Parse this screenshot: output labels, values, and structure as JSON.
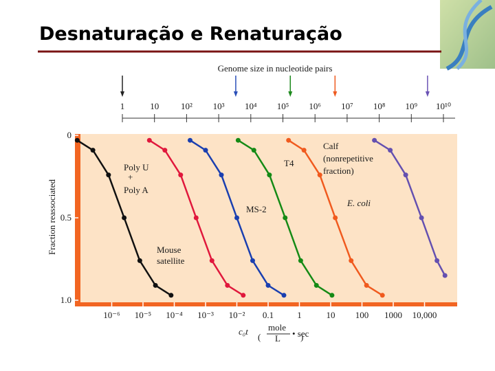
{
  "chart_data": {
    "type": "line",
    "title": "Desnaturação e Renaturação",
    "x2label": "Genome size in nucleotide pairs",
    "ylabel": "Fraction reassociated",
    "xlabel_parts": [
      "c₀t",
      "mole",
      "L",
      "• sec"
    ],
    "xscale": "log",
    "xlim": [
      1e-07,
      100000
    ],
    "xticks": [
      {
        "value": 1e-06,
        "label": "10⁻⁶"
      },
      {
        "value": 1e-05,
        "label": "10⁻⁵"
      },
      {
        "value": 0.0001,
        "label": "10⁻⁴"
      },
      {
        "value": 0.001,
        "label": "10⁻³"
      },
      {
        "value": 0.01,
        "label": "10⁻²"
      },
      0.1,
      1,
      10,
      100,
      1000,
      {
        "value": 10000,
        "label": "10,000"
      }
    ],
    "ylim": [
      0,
      1
    ],
    "y_inverted": true,
    "yticks": [
      0,
      0.5,
      {
        "value": 1,
        "label": "1.0"
      }
    ],
    "x2lim": [
      1,
      10000000000
    ],
    "x2ticks": [
      1,
      10,
      {
        "value": 100,
        "label": "10²"
      },
      {
        "value": 1000,
        "label": "10³"
      },
      {
        "value": 10000,
        "label": "10⁴"
      },
      {
        "value": 100000,
        "label": "10⁵"
      },
      {
        "value": 1000000,
        "label": "10⁶"
      },
      {
        "value": 10000000,
        "label": "10⁷"
      },
      {
        "value": 100000000,
        "label": "10⁸"
      },
      {
        "value": 1000000000,
        "label": "10⁹"
      },
      {
        "value": 10000000000,
        "label": "10¹⁰"
      }
    ],
    "x2_arrows": [
      {
        "value": 1,
        "color": "#222222"
      },
      {
        "value": 3400,
        "color": "#2a4fb8"
      },
      {
        "value": 170000,
        "color": "#1e8a1e"
      },
      {
        "value": 4200000,
        "color": "#ee5a20"
      },
      {
        "value": 3200000000,
        "color": "#6a52b4"
      }
    ],
    "series": [
      {
        "label": [
          "Poly U",
          "+",
          "Poly A"
        ],
        "color": "#111111",
        "x": [
          7.9e-08,
          2.5e-07,
          7.9e-07,
          2.5e-06,
          7.9e-06,
          2.5e-05,
          7.9e-05
        ],
        "values": [
          0.03,
          0.09,
          0.24,
          0.5,
          0.76,
          0.91,
          0.97
        ]
      },
      {
        "label": [
          "Mouse",
          "satellite"
        ],
        "color": "#e0183c",
        "x": [
          1.6e-05,
          5e-05,
          0.00016,
          0.0005,
          0.0016,
          0.005,
          0.016
        ],
        "values": [
          0.03,
          0.09,
          0.24,
          0.5,
          0.76,
          0.91,
          0.97
        ]
      },
      {
        "label": [
          "MS-2"
        ],
        "color": "#1a3fb0",
        "x": [
          0.00032,
          0.001,
          0.0032,
          0.01,
          0.032,
          0.1,
          0.32
        ],
        "values": [
          0.03,
          0.09,
          0.24,
          0.5,
          0.76,
          0.91,
          0.97
        ]
      },
      {
        "label": [
          "T4"
        ],
        "color": "#158a15",
        "x": [
          0.011,
          0.035,
          0.11,
          0.35,
          1.1,
          3.5,
          11
        ],
        "values": [
          0.03,
          0.09,
          0.24,
          0.5,
          0.76,
          0.91,
          0.97
        ]
      },
      {
        "label": [
          "E. coli"
        ],
        "color": "#f05a1e",
        "x": [
          0.45,
          1.4,
          4.5,
          14,
          45,
          140,
          450
        ],
        "values": [
          0.03,
          0.09,
          0.24,
          0.5,
          0.76,
          0.91,
          0.97
        ]
      },
      {
        "label": [
          "Calf",
          "(nonrepetitive",
          "fraction)"
        ],
        "color": "#6450b0",
        "x": [
          250,
          800,
          2500,
          8000,
          25000,
          45000
        ],
        "values": [
          0.03,
          0.09,
          0.24,
          0.5,
          0.76,
          0.85
        ]
      }
    ]
  }
}
